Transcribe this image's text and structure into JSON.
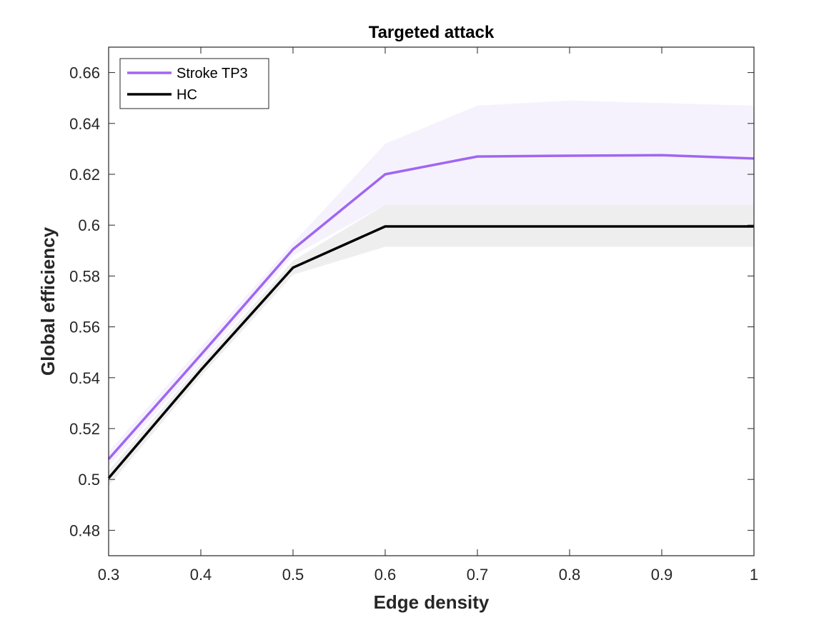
{
  "chart_data": {
    "type": "line",
    "title": "Targeted attack",
    "xlabel": "Edge density",
    "ylabel": "Global efficiency",
    "xlim": [
      0.3,
      1.0
    ],
    "ylim": [
      0.47,
      0.67
    ],
    "xticks": [
      0.3,
      0.4,
      0.5,
      0.6,
      0.7,
      0.8,
      0.9,
      1.0
    ],
    "xtick_labels": [
      "0.3",
      "0.4",
      "0.5",
      "0.6",
      "0.7",
      "0.8",
      "0.9",
      "1"
    ],
    "yticks": [
      0.48,
      0.5,
      0.52,
      0.54,
      0.56,
      0.58,
      0.6,
      0.62,
      0.64,
      0.66
    ],
    "ytick_labels": [
      "0.48",
      "0.5",
      "0.52",
      "0.54",
      "0.56",
      "0.58",
      "0.6",
      "0.62",
      "0.64",
      "0.66"
    ],
    "grid": false,
    "legend_position": "top-left",
    "x": [
      0.3,
      0.4,
      0.5,
      0.6,
      0.7,
      0.8,
      0.9,
      1.0
    ],
    "series": [
      {
        "name": "Stroke TP3",
        "color": "#a066f2",
        "band_color": "#f6f2fd",
        "values": [
          0.508,
          0.549,
          0.5905,
          0.62,
          0.627,
          0.6273,
          0.6275,
          0.6262
        ],
        "upper": [
          0.511,
          0.552,
          0.593,
          0.632,
          0.647,
          0.649,
          0.648,
          0.647
        ],
        "lower": [
          0.505,
          0.546,
          0.588,
          0.608,
          0.607,
          0.606,
          0.607,
          0.605
        ]
      },
      {
        "name": "HC",
        "color": "#000000",
        "band_color": "#eeeeee",
        "values": [
          0.5005,
          0.543,
          0.5833,
          0.5995,
          0.5995,
          0.5995,
          0.5995,
          0.5995
        ],
        "upper": [
          0.5035,
          0.5455,
          0.586,
          0.608,
          0.608,
          0.608,
          0.608,
          0.608
        ],
        "lower": [
          0.4975,
          0.5405,
          0.5805,
          0.5915,
          0.5915,
          0.5915,
          0.5915,
          0.5915
        ]
      }
    ]
  }
}
